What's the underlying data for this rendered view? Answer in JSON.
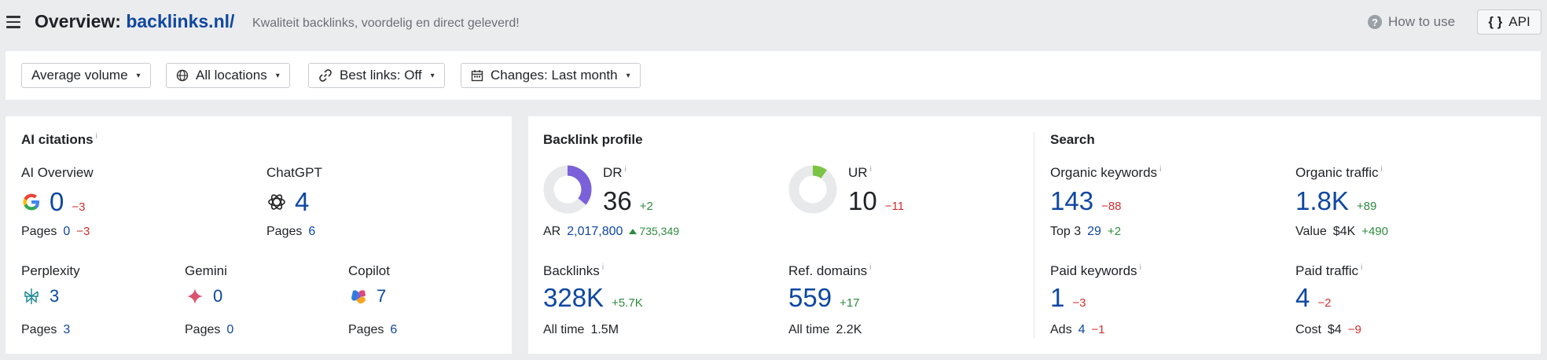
{
  "header": {
    "title_prefix": "Overview: ",
    "domain": "backlinks.nl/",
    "subtitle": "Kwaliteit backlinks, voordelig en direct geleverd!",
    "how_to_use": "How to use",
    "api": "API"
  },
  "filters": {
    "volume": "Average volume",
    "locations": "All locations",
    "best_links": "Best links: Off",
    "changes": "Changes: Last month"
  },
  "ai_citations": {
    "title": "AI citations",
    "info": "i",
    "ai_overview": {
      "label": "AI Overview",
      "value": "0",
      "change": "−3",
      "pages_label": "Pages",
      "pages": "0",
      "pages_change": "−3"
    },
    "chatgpt": {
      "label": "ChatGPT",
      "value": "4",
      "pages_label": "Pages",
      "pages": "6"
    },
    "perplexity": {
      "label": "Perplexity",
      "value": "3",
      "pages_label": "Pages",
      "pages": "3"
    },
    "gemini": {
      "label": "Gemini",
      "value": "0",
      "pages_label": "Pages",
      "pages": "0"
    },
    "copilot": {
      "label": "Copilot",
      "value": "7",
      "pages_label": "Pages",
      "pages": "6"
    }
  },
  "backlink_profile": {
    "title": "Backlink profile",
    "dr": {
      "label": "DR",
      "value": "36",
      "change": "+2",
      "fraction": 0.36
    },
    "ar": {
      "label": "AR",
      "value": "2,017,800",
      "change": "735,349"
    },
    "ur": {
      "label": "UR",
      "value": "10",
      "change": "−11",
      "fraction": 0.1
    },
    "backlinks": {
      "label": "Backlinks",
      "value": "328K",
      "change": "+5.7K",
      "alltime_label": "All time",
      "alltime": "1.5M"
    },
    "ref_domains": {
      "label": "Ref. domains",
      "value": "559",
      "change": "+17",
      "alltime_label": "All time",
      "alltime": "2.2K"
    }
  },
  "search": {
    "title": "Search",
    "organic_keywords": {
      "label": "Organic keywords",
      "value": "143",
      "change": "−88",
      "sub_label": "Top 3",
      "sub_value": "29",
      "sub_change": "+2"
    },
    "organic_traffic": {
      "label": "Organic traffic",
      "value": "1.8K",
      "change": "+89",
      "sub_label": "Value",
      "sub_value": "$4K",
      "sub_change": "+490"
    },
    "paid_keywords": {
      "label": "Paid keywords",
      "value": "1",
      "change": "−3",
      "sub_label": "Ads",
      "sub_value": "4",
      "sub_change": "−1"
    },
    "paid_traffic": {
      "label": "Paid traffic",
      "value": "4",
      "change": "−2",
      "sub_label": "Cost",
      "sub_value": "$4",
      "sub_change": "−9"
    }
  },
  "colors": {
    "link": "#0f47a1",
    "negative": "#d32f2f",
    "positive": "#2e8b3e",
    "dr_donut": "#7b61d9",
    "ur_donut": "#7cc443"
  }
}
